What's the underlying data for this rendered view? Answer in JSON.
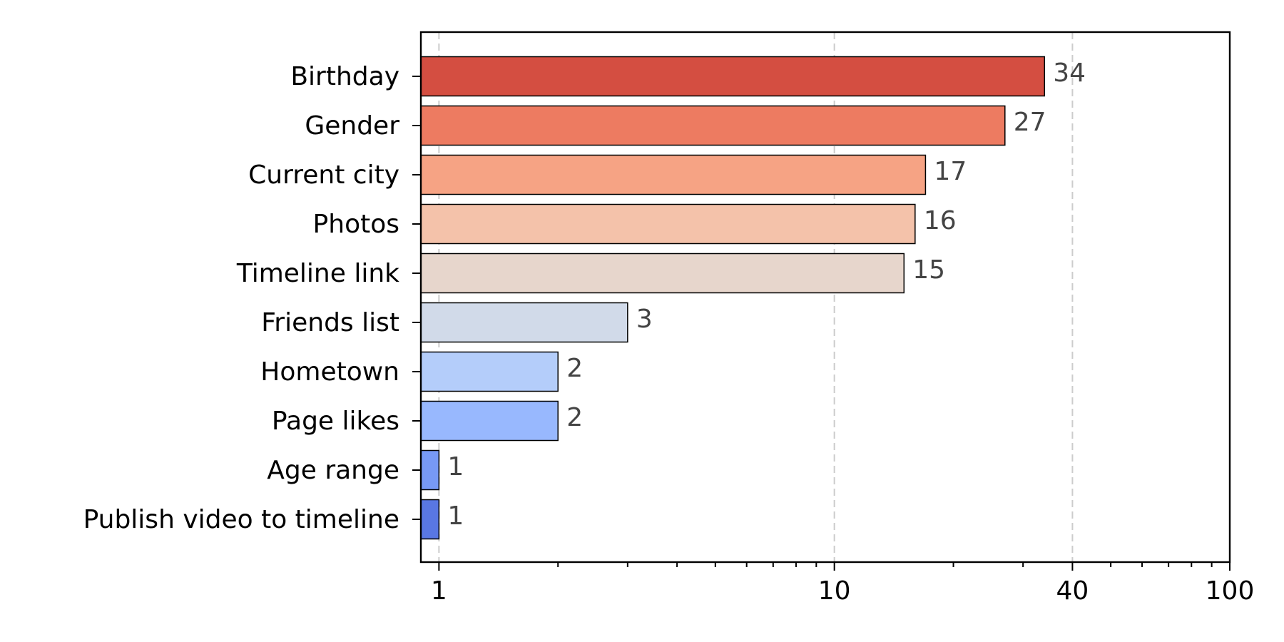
{
  "chart_data": {
    "type": "bar",
    "orientation": "horizontal",
    "x_scale": "log",
    "xlim": [
      0.9,
      100
    ],
    "major_ticks": [
      1,
      10,
      40,
      100
    ],
    "major_tick_labels": [
      "1",
      "10",
      "40",
      "100"
    ],
    "grid": "x-major-dashed",
    "categories": [
      "Birthday",
      "Gender",
      "Current city",
      "Photos",
      "Timeline link",
      "Friends list",
      "Hometown",
      "Page likes",
      "Age range",
      "Publish video to timeline"
    ],
    "values": [
      34,
      27,
      17,
      16,
      15,
      3,
      2,
      2,
      1,
      1
    ],
    "value_labels": [
      "34",
      "27",
      "17",
      "16",
      "15",
      "3",
      "2",
      "2",
      "1",
      "1"
    ],
    "colors": [
      "#d44e41",
      "#ed7b61",
      "#f6a384",
      "#f4c2aa",
      "#e7d6cc",
      "#d1dae9",
      "#b4cdfa",
      "#98b8fe",
      "#7799f5",
      "#5977e3"
    ],
    "title": "",
    "xlabel": "",
    "ylabel": ""
  }
}
